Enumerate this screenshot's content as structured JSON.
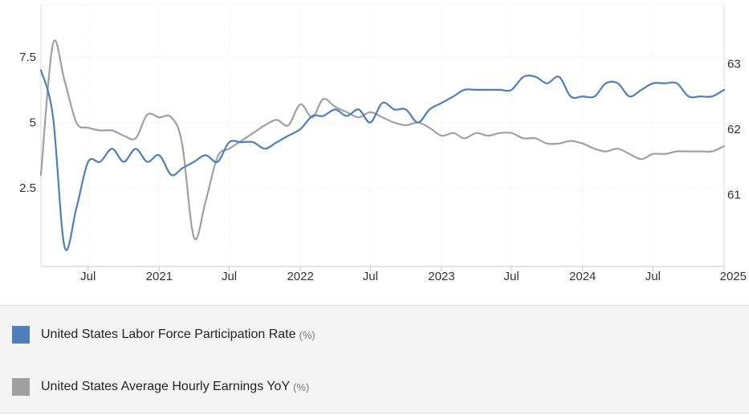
{
  "chart_data": {
    "type": "line",
    "x_range": [
      "2020-03-01",
      "2025-01-01"
    ],
    "x_ticks": [
      {
        "date": "2020-07-01",
        "label": "Jul",
        "bold": false
      },
      {
        "date": "2021-01-01",
        "label": "2021",
        "bold": true
      },
      {
        "date": "2021-07-01",
        "label": "Jul",
        "bold": false
      },
      {
        "date": "2022-01-01",
        "label": "2022",
        "bold": true
      },
      {
        "date": "2022-07-01",
        "label": "Jul",
        "bold": false
      },
      {
        "date": "2023-01-01",
        "label": "2023",
        "bold": true
      },
      {
        "date": "2023-07-01",
        "label": "Jul",
        "bold": false
      },
      {
        "date": "2024-01-01",
        "label": "2024",
        "bold": true
      },
      {
        "date": "2024-07-01",
        "label": "Jul",
        "bold": false
      },
      {
        "date": "2025-01-01",
        "label": "2025",
        "bold": true
      }
    ],
    "y_left": {
      "range": [
        -0.5,
        9.5
      ],
      "ticks": [
        2.5,
        5,
        7.5
      ],
      "tick_labels": [
        "2.5",
        "5",
        "7.5"
      ]
    },
    "y_right": {
      "range": [
        59.9,
        63.9
      ],
      "ticks": [
        61,
        62,
        63
      ],
      "tick_labels": [
        "61",
        "62",
        "63"
      ]
    },
    "grid": true,
    "legend_position": "bottom",
    "series": [
      {
        "name": "United States Labor Force Participation Rate",
        "unit": "(%)",
        "axis": "right",
        "color": "#4e7fb8",
        "points": [
          [
            "2020-03-01",
            62.9
          ],
          [
            "2020-04-01",
            62.2
          ],
          [
            "2020-05-01",
            60.2
          ],
          [
            "2020-06-01",
            60.8
          ],
          [
            "2020-07-01",
            61.5
          ],
          [
            "2020-08-01",
            61.5
          ],
          [
            "2020-09-01",
            61.7
          ],
          [
            "2020-10-01",
            61.5
          ],
          [
            "2020-11-01",
            61.7
          ],
          [
            "2020-12-01",
            61.5
          ],
          [
            "2021-01-01",
            61.6
          ],
          [
            "2021-02-01",
            61.3
          ],
          [
            "2021-03-01",
            61.4
          ],
          [
            "2021-04-01",
            61.5
          ],
          [
            "2021-05-01",
            61.6
          ],
          [
            "2021-06-01",
            61.5
          ],
          [
            "2021-07-01",
            61.8
          ],
          [
            "2021-08-01",
            61.8
          ],
          [
            "2021-09-01",
            61.8
          ],
          [
            "2021-10-01",
            61.7
          ],
          [
            "2021-11-01",
            61.8
          ],
          [
            "2021-12-01",
            61.9
          ],
          [
            "2022-01-01",
            62.0
          ],
          [
            "2022-02-01",
            62.2
          ],
          [
            "2022-03-01",
            62.2
          ],
          [
            "2022-04-01",
            62.3
          ],
          [
            "2022-05-01",
            62.2
          ],
          [
            "2022-06-01",
            62.3
          ],
          [
            "2022-07-01",
            62.1
          ],
          [
            "2022-08-01",
            62.4
          ],
          [
            "2022-09-01",
            62.3
          ],
          [
            "2022-10-01",
            62.3
          ],
          [
            "2022-11-01",
            62.1
          ],
          [
            "2022-12-01",
            62.3
          ],
          [
            "2023-01-01",
            62.4
          ],
          [
            "2023-02-01",
            62.5
          ],
          [
            "2023-03-01",
            62.6
          ],
          [
            "2023-04-01",
            62.6
          ],
          [
            "2023-05-01",
            62.6
          ],
          [
            "2023-06-01",
            62.6
          ],
          [
            "2023-07-01",
            62.6
          ],
          [
            "2023-08-01",
            62.8
          ],
          [
            "2023-09-01",
            62.8
          ],
          [
            "2023-10-01",
            62.7
          ],
          [
            "2023-11-01",
            62.8
          ],
          [
            "2023-12-01",
            62.5
          ],
          [
            "2024-01-01",
            62.5
          ],
          [
            "2024-02-01",
            62.5
          ],
          [
            "2024-03-01",
            62.7
          ],
          [
            "2024-04-01",
            62.7
          ],
          [
            "2024-05-01",
            62.5
          ],
          [
            "2024-06-01",
            62.6
          ],
          [
            "2024-07-01",
            62.7
          ],
          [
            "2024-08-01",
            62.7
          ],
          [
            "2024-09-01",
            62.7
          ],
          [
            "2024-10-01",
            62.5
          ],
          [
            "2024-11-01",
            62.5
          ],
          [
            "2024-12-01",
            62.5
          ],
          [
            "2025-01-01",
            62.6
          ]
        ]
      },
      {
        "name": "United States Average Hourly Earnings YoY",
        "unit": "(%)",
        "axis": "left",
        "color": "#a0a0a0",
        "points": [
          [
            "2020-03-01",
            3.0
          ],
          [
            "2020-04-01",
            8.0
          ],
          [
            "2020-05-01",
            6.6
          ],
          [
            "2020-06-01",
            5.0
          ],
          [
            "2020-07-01",
            4.8
          ],
          [
            "2020-08-01",
            4.7
          ],
          [
            "2020-09-01",
            4.7
          ],
          [
            "2020-10-01",
            4.5
          ],
          [
            "2020-11-01",
            4.4
          ],
          [
            "2020-12-01",
            5.3
          ],
          [
            "2021-01-01",
            5.2
          ],
          [
            "2021-02-01",
            5.2
          ],
          [
            "2021-03-01",
            4.2
          ],
          [
            "2021-04-01",
            0.6
          ],
          [
            "2021-05-01",
            2.0
          ],
          [
            "2021-06-01",
            3.7
          ],
          [
            "2021-07-01",
            4.0
          ],
          [
            "2021-08-01",
            4.3
          ],
          [
            "2021-09-01",
            4.6
          ],
          [
            "2021-10-01",
            4.9
          ],
          [
            "2021-11-01",
            5.1
          ],
          [
            "2021-12-01",
            4.9
          ],
          [
            "2022-01-01",
            5.7
          ],
          [
            "2022-02-01",
            5.2
          ],
          [
            "2022-03-01",
            5.9
          ],
          [
            "2022-04-01",
            5.6
          ],
          [
            "2022-05-01",
            5.4
          ],
          [
            "2022-06-01",
            5.2
          ],
          [
            "2022-07-01",
            5.4
          ],
          [
            "2022-08-01",
            5.2
          ],
          [
            "2022-09-01",
            5.0
          ],
          [
            "2022-10-01",
            4.9
          ],
          [
            "2022-11-01",
            5.0
          ],
          [
            "2022-12-01",
            4.8
          ],
          [
            "2023-01-01",
            4.5
          ],
          [
            "2023-02-01",
            4.6
          ],
          [
            "2023-03-01",
            4.4
          ],
          [
            "2023-04-01",
            4.6
          ],
          [
            "2023-05-01",
            4.5
          ],
          [
            "2023-06-01",
            4.6
          ],
          [
            "2023-07-01",
            4.6
          ],
          [
            "2023-08-01",
            4.4
          ],
          [
            "2023-09-01",
            4.4
          ],
          [
            "2023-10-01",
            4.2
          ],
          [
            "2023-11-01",
            4.2
          ],
          [
            "2023-12-01",
            4.3
          ],
          [
            "2024-01-01",
            4.2
          ],
          [
            "2024-02-01",
            4.0
          ],
          [
            "2024-03-01",
            3.9
          ],
          [
            "2024-04-01",
            4.0
          ],
          [
            "2024-05-01",
            3.8
          ],
          [
            "2024-06-01",
            3.6
          ],
          [
            "2024-07-01",
            3.8
          ],
          [
            "2024-08-01",
            3.8
          ],
          [
            "2024-09-01",
            3.9
          ],
          [
            "2024-10-01",
            3.9
          ],
          [
            "2024-11-01",
            3.9
          ],
          [
            "2024-12-01",
            3.9
          ],
          [
            "2025-01-01",
            4.1
          ]
        ]
      }
    ]
  }
}
